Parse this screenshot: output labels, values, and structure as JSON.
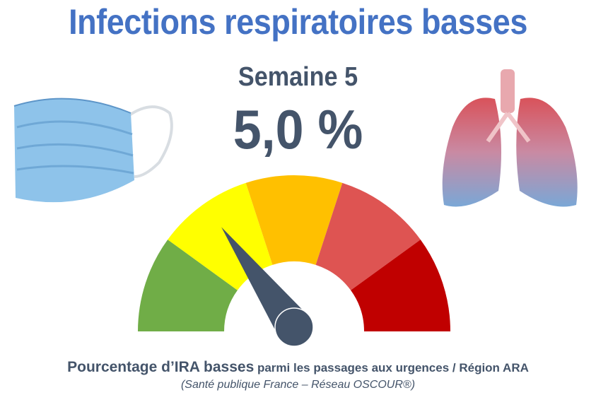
{
  "title": "Infections respiratoires basses",
  "week_label": "Semaine 5",
  "value_label": "5,0 %",
  "caption": {
    "bold_part": "Pourcentage d’IRA basses",
    "rest": " parmi les passages aux urgences / Région ARA"
  },
  "source": "(Santé publique France – Réseau OSCOUR®)",
  "gauge": {
    "segment_colors": [
      "#70AD47",
      "#FFFF00",
      "#FFC000",
      "#DE5452",
      "#C00000"
    ],
    "needle_color": "#44546A",
    "needle_position": 0.3
  },
  "colors": {
    "title": "#4472C4",
    "text": "#44546A"
  }
}
